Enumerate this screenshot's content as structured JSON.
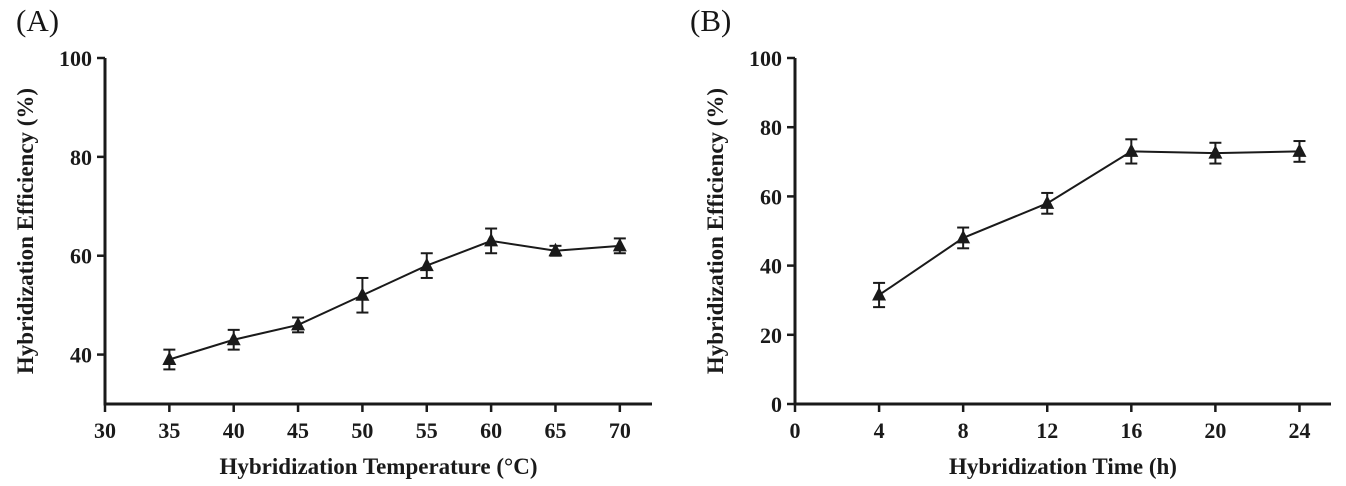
{
  "figure": {
    "background": "#ffffff",
    "ink_color": "#1a1a1a"
  },
  "chart_data": [
    {
      "panel_label": "(A)",
      "type": "line",
      "title": "",
      "xlabel": "Hybridization Temperature (°C)",
      "ylabel": "Hybridization Efficiency (%)",
      "x": [
        35,
        40,
        45,
        50,
        55,
        60,
        65,
        70
      ],
      "y": [
        39,
        43,
        46,
        52,
        58,
        63,
        61,
        62
      ],
      "yerr": [
        2,
        2,
        1.5,
        3.5,
        2.5,
        2.5,
        1,
        1.5
      ],
      "xlim": [
        30,
        72.5
      ],
      "ylim": [
        30,
        100
      ],
      "xticks": [
        30,
        35,
        40,
        45,
        50,
        55,
        60,
        65,
        70
      ],
      "yticks": [
        40,
        60,
        80,
        100
      ],
      "marker": "filled-triangle-up",
      "error_bars": "vertical-with-caps",
      "grid": false,
      "legend": null,
      "color": "#1a1a1a"
    },
    {
      "panel_label": "(B)",
      "type": "line",
      "title": "",
      "xlabel": "Hybridization Time (h)",
      "ylabel": "Hybridization Efficiency (%)",
      "x": [
        4,
        8,
        12,
        16,
        20,
        24
      ],
      "y": [
        31.5,
        48,
        58,
        73,
        72.5,
        73
      ],
      "yerr": [
        3.5,
        3,
        3,
        3.5,
        3,
        3
      ],
      "xlim": [
        0,
        25.5
      ],
      "ylim": [
        0,
        100
      ],
      "xticks": [
        0,
        4,
        8,
        12,
        16,
        20,
        24
      ],
      "yticks": [
        0,
        20,
        40,
        60,
        80,
        100
      ],
      "marker": "filled-triangle-up",
      "error_bars": "vertical-with-caps",
      "grid": false,
      "legend": null,
      "color": "#1a1a1a"
    }
  ]
}
